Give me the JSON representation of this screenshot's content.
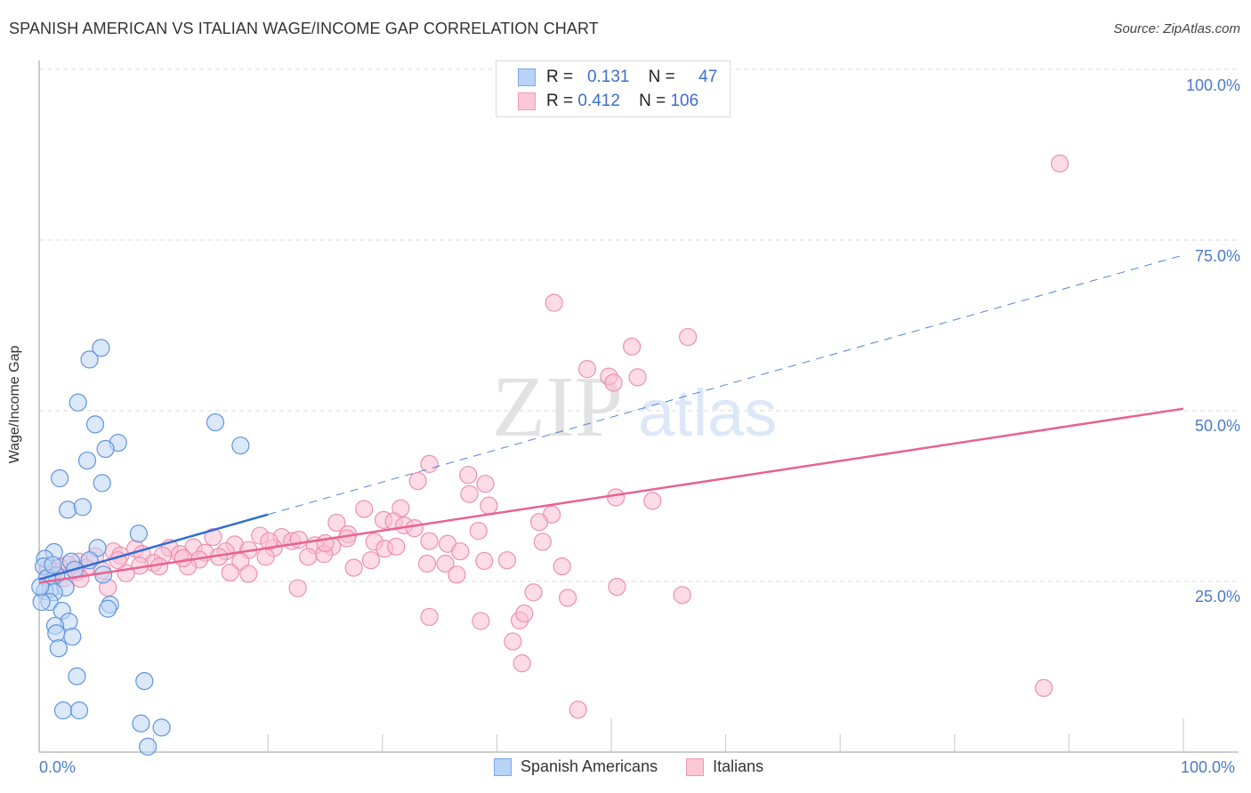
{
  "header": {
    "title": "SPANISH AMERICAN VS ITALIAN WAGE/INCOME GAP CORRELATION CHART",
    "source": "Source: ZipAtlas.com"
  },
  "watermark": {
    "zip": "ZIP",
    "atlas": "atlas"
  },
  "legend": {
    "rows": [
      {
        "r_label": "R =",
        "r_value": "0.131",
        "n_label": "N =",
        "n_value": "47",
        "color": "#b9d3f5",
        "border": "#7aa6e6"
      },
      {
        "r_label": "R =",
        "r_value": "0.412",
        "n_label": "N =",
        "n_value": "106",
        "color": "#fbc8d8",
        "border": "#ee98b4"
      }
    ]
  },
  "bottom_legend": [
    {
      "label": "Spanish Americans",
      "color": "#b9d3f5",
      "border": "#7aa6e6"
    },
    {
      "label": "Italians",
      "color": "#fbc8d8",
      "border": "#ee98b4"
    }
  ],
  "axes": {
    "ylabel": "Wage/Income Gap",
    "yticks": [
      "100.0%",
      "75.0%",
      "50.0%",
      "25.0%"
    ],
    "xtick_left": "0.0%",
    "xtick_right": "100.0%"
  },
  "chart_data": {
    "type": "scatter",
    "title": "SPANISH AMERICAN VS ITALIAN WAGE/INCOME GAP CORRELATION CHART",
    "xlabel": "",
    "ylabel": "Wage/Income Gap",
    "xlim": [
      0,
      100
    ],
    "ylim": [
      0,
      100
    ],
    "x_ticks": [
      "0.0%",
      "100.0%"
    ],
    "y_ticks": [
      "25.0%",
      "50.0%",
      "75.0%",
      "100.0%"
    ],
    "grid": true,
    "legend_position": "bottom",
    "series": [
      {
        "name": "Spanish Americans",
        "color": "#6a9ee0",
        "R": 0.131,
        "N": 47,
        "trend": {
          "x0": 0,
          "y0": 25.3,
          "x1": 100,
          "y1": 72.8,
          "solid_until_x": 20
        },
        "points": [
          [
            5.4,
            59.2
          ],
          [
            4.4,
            57.5
          ],
          [
            3.4,
            51.2
          ],
          [
            15.4,
            48.3
          ],
          [
            4.9,
            48.0
          ],
          [
            6.9,
            45.3
          ],
          [
            17.6,
            44.9
          ],
          [
            5.8,
            44.4
          ],
          [
            4.2,
            42.7
          ],
          [
            5.5,
            39.4
          ],
          [
            1.8,
            40.1
          ],
          [
            2.5,
            35.5
          ],
          [
            3.8,
            35.9
          ],
          [
            8.7,
            32.0
          ],
          [
            5.1,
            29.9
          ],
          [
            1.3,
            29.3
          ],
          [
            0.5,
            28.3
          ],
          [
            2.8,
            27.9
          ],
          [
            0.4,
            27.2
          ],
          [
            3.1,
            26.7
          ],
          [
            1.5,
            25.9
          ],
          [
            5.6,
            26.0
          ],
          [
            0.7,
            25.5
          ],
          [
            1.0,
            23.9
          ],
          [
            2.3,
            24.1
          ],
          [
            0.5,
            23.6
          ],
          [
            1.3,
            23.4
          ],
          [
            0.9,
            22.0
          ],
          [
            2.0,
            20.7
          ],
          [
            6.2,
            21.6
          ],
          [
            6.0,
            21.0
          ],
          [
            2.6,
            19.1
          ],
          [
            1.4,
            18.5
          ],
          [
            1.5,
            17.4
          ],
          [
            2.9,
            16.9
          ],
          [
            1.7,
            15.2
          ],
          [
            3.3,
            11.1
          ],
          [
            9.2,
            10.4
          ],
          [
            2.1,
            6.1
          ],
          [
            3.5,
            6.1
          ],
          [
            8.9,
            4.2
          ],
          [
            10.7,
            3.6
          ],
          [
            9.5,
            0.8
          ],
          [
            0.2,
            22.0
          ],
          [
            1.2,
            27.4
          ],
          [
            0.1,
            24.2
          ],
          [
            4.4,
            28.1
          ]
        ]
      },
      {
        "name": "Italians",
        "color": "#ee8fb0",
        "R": 0.412,
        "N": 106,
        "trend": {
          "x0": 0,
          "y0": 24.8,
          "x1": 100,
          "y1": 50.3
        },
        "points": [
          [
            89.2,
            86.2
          ],
          [
            45.0,
            65.8
          ],
          [
            56.7,
            60.8
          ],
          [
            51.8,
            59.4
          ],
          [
            47.9,
            56.1
          ],
          [
            49.8,
            55.0
          ],
          [
            52.3,
            54.9
          ],
          [
            50.2,
            54.1
          ],
          [
            34.1,
            42.2
          ],
          [
            37.5,
            40.6
          ],
          [
            33.1,
            39.7
          ],
          [
            39.0,
            39.3
          ],
          [
            37.6,
            37.8
          ],
          [
            50.4,
            37.3
          ],
          [
            53.6,
            36.8
          ],
          [
            39.3,
            36.1
          ],
          [
            31.6,
            35.7
          ],
          [
            44.8,
            34.8
          ],
          [
            28.4,
            35.6
          ],
          [
            30.1,
            34.0
          ],
          [
            31.0,
            33.8
          ],
          [
            26.0,
            33.6
          ],
          [
            43.7,
            33.7
          ],
          [
            31.9,
            33.2
          ],
          [
            32.8,
            32.8
          ],
          [
            27.0,
            31.9
          ],
          [
            38.4,
            32.4
          ],
          [
            19.3,
            31.7
          ],
          [
            21.2,
            31.5
          ],
          [
            26.9,
            31.3
          ],
          [
            15.2,
            31.5
          ],
          [
            22.1,
            30.9
          ],
          [
            29.3,
            30.8
          ],
          [
            34.1,
            30.9
          ],
          [
            44.0,
            30.8
          ],
          [
            35.7,
            30.5
          ],
          [
            25.6,
            30.1
          ],
          [
            17.1,
            30.4
          ],
          [
            24.1,
            30.3
          ],
          [
            13.5,
            30.0
          ],
          [
            11.4,
            29.9
          ],
          [
            8.4,
            29.8
          ],
          [
            20.5,
            29.9
          ],
          [
            30.2,
            29.8
          ],
          [
            18.3,
            29.6
          ],
          [
            16.3,
            29.4
          ],
          [
            6.5,
            29.4
          ],
          [
            36.8,
            29.4
          ],
          [
            9.0,
            29.0
          ],
          [
            14.5,
            29.2
          ],
          [
            10.8,
            28.8
          ],
          [
            24.9,
            29.0
          ],
          [
            12.3,
            29.0
          ],
          [
            7.1,
            28.8
          ],
          [
            23.5,
            28.6
          ],
          [
            19.8,
            28.6
          ],
          [
            15.7,
            28.6
          ],
          [
            4.9,
            28.7
          ],
          [
            29.0,
            28.1
          ],
          [
            40.9,
            28.1
          ],
          [
            14.0,
            28.2
          ],
          [
            6.9,
            28.1
          ],
          [
            38.9,
            28.0
          ],
          [
            10.0,
            27.7
          ],
          [
            17.6,
            27.9
          ],
          [
            3.5,
            27.9
          ],
          [
            33.9,
            27.6
          ],
          [
            2.5,
            27.5
          ],
          [
            8.8,
            27.3
          ],
          [
            13.0,
            27.2
          ],
          [
            45.7,
            27.2
          ],
          [
            4.1,
            27.0
          ],
          [
            1.8,
            27.1
          ],
          [
            35.5,
            27.6
          ],
          [
            27.5,
            27.0
          ],
          [
            0.8,
            26.9
          ],
          [
            5.5,
            26.6
          ],
          [
            1.3,
            26.5
          ],
          [
            16.7,
            26.3
          ],
          [
            3.3,
            26.4
          ],
          [
            18.3,
            26.1
          ],
          [
            36.5,
            26.0
          ],
          [
            7.6,
            26.2
          ],
          [
            0.9,
            25.7
          ],
          [
            2.2,
            25.5
          ],
          [
            3.6,
            25.4
          ],
          [
            22.6,
            24.0
          ],
          [
            6.0,
            24.1
          ],
          [
            50.5,
            24.2
          ],
          [
            56.2,
            23.0
          ],
          [
            43.2,
            23.4
          ],
          [
            46.2,
            22.6
          ],
          [
            34.1,
            19.8
          ],
          [
            38.6,
            19.2
          ],
          [
            42.0,
            19.3
          ],
          [
            42.4,
            20.3
          ],
          [
            41.4,
            16.2
          ],
          [
            42.2,
            13.0
          ],
          [
            87.8,
            9.4
          ],
          [
            47.1,
            6.2
          ],
          [
            10.5,
            27.2
          ],
          [
            20.1,
            30.9
          ],
          [
            12.6,
            28.4
          ],
          [
            31.2,
            30.1
          ],
          [
            22.7,
            31.1
          ],
          [
            25.0,
            30.6
          ]
        ]
      }
    ]
  }
}
